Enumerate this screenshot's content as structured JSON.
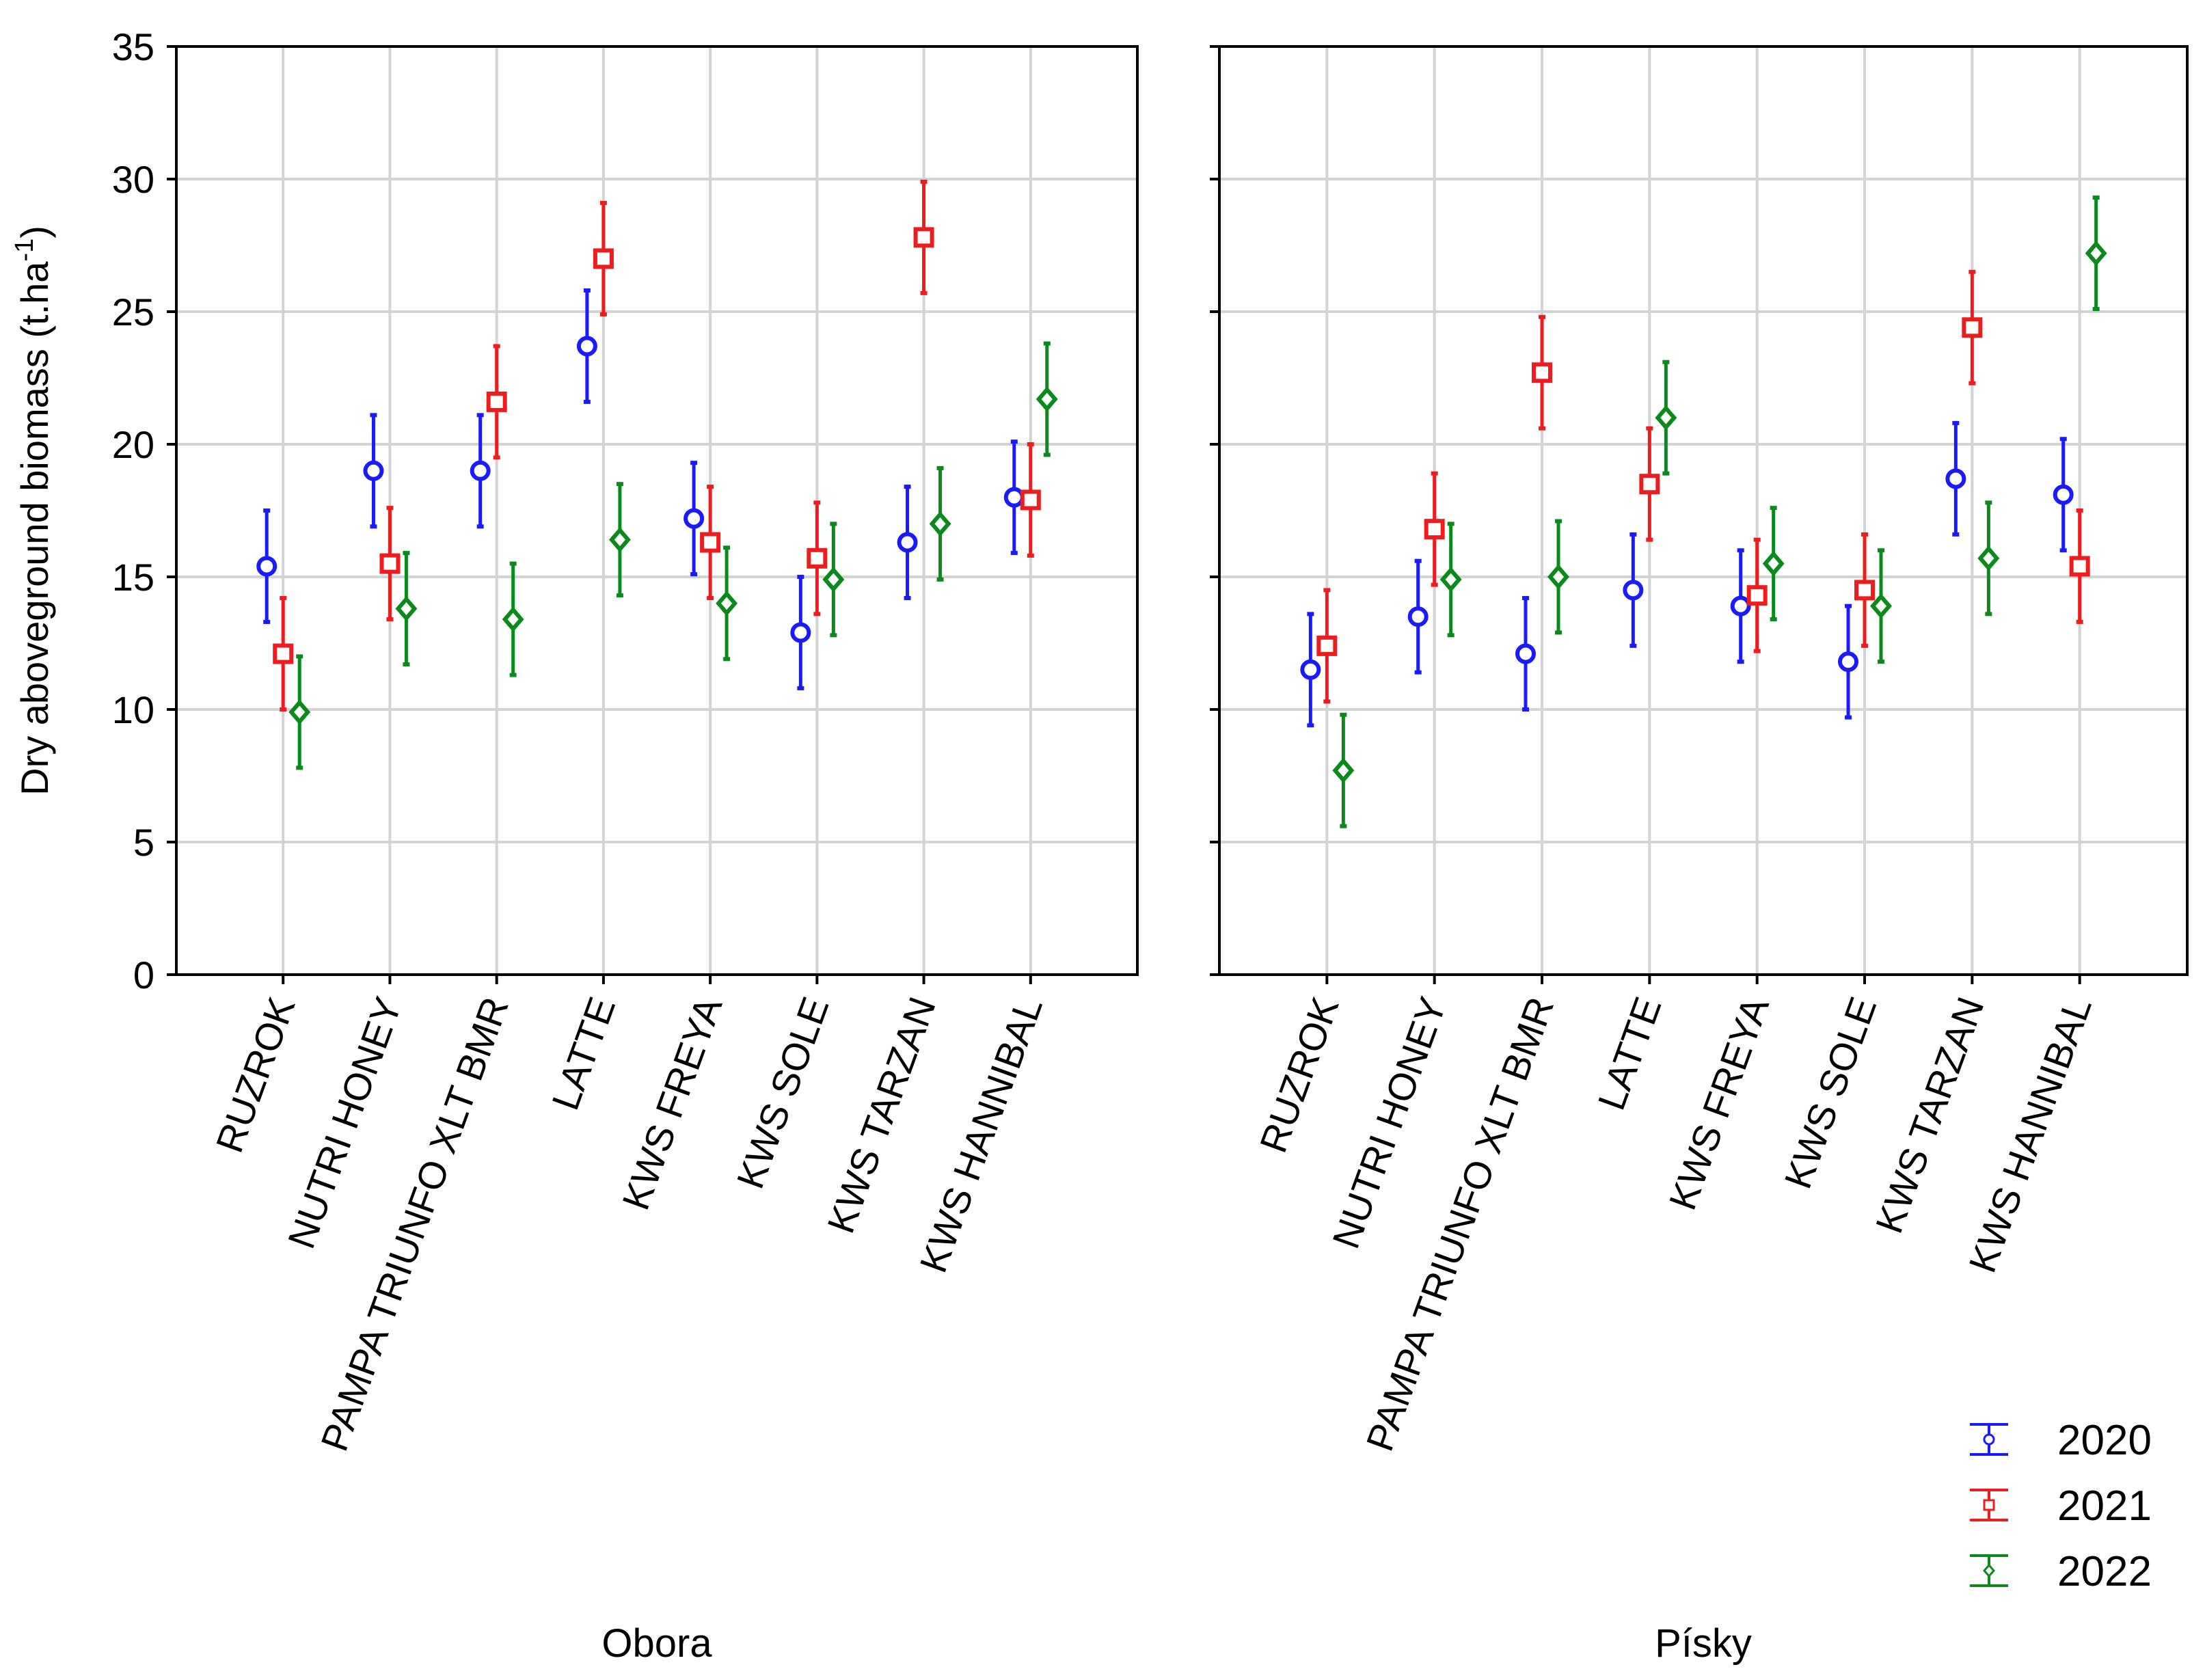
{
  "chart_data": {
    "type": "errorbar",
    "ylabel_main": "Dry aboveground biomass (t.ha",
    "ylabel_exponent": "-1",
    "ylabel_suffix": ")",
    "ylim": [
      0,
      35
    ],
    "yticks": [
      "0",
      "5",
      "10",
      "15",
      "20",
      "25",
      "30",
      "35"
    ],
    "grid": true,
    "legend_position": "bottom-right",
    "categories": [
      "RUZROK",
      "NUTRI HONEY",
      "PAMPA TRIUNFO XLT BMR",
      "LATTE",
      "KWS FREYA",
      "KWS SOLE",
      "KWS TARZAN",
      "KWS HANNIBAL"
    ],
    "series": [
      {
        "name": "2020",
        "color": "#1a1aff",
        "marker": "circle"
      },
      {
        "name": "2021",
        "color": "#ee1c1c",
        "marker": "square"
      },
      {
        "name": "2022",
        "color": "#0a8a1a",
        "marker": "diamond"
      }
    ],
    "panels": [
      {
        "title": "Obora",
        "values": {
          "2020": [
            15.4,
            19.0,
            19.0,
            23.7,
            17.2,
            12.9,
            16.3,
            18.0
          ],
          "2021": [
            12.1,
            15.5,
            21.6,
            27.0,
            16.3,
            15.7,
            27.8,
            17.9
          ],
          "2022": [
            9.9,
            13.8,
            13.4,
            16.4,
            14.0,
            14.9,
            17.0,
            21.7
          ]
        },
        "lower": {
          "2020": [
            13.3,
            16.9,
            16.9,
            21.6,
            15.1,
            10.8,
            14.2,
            15.9
          ],
          "2021": [
            10.0,
            13.4,
            19.5,
            24.9,
            14.2,
            13.6,
            25.7,
            15.8
          ],
          "2022": [
            7.8,
            11.7,
            11.3,
            14.3,
            11.9,
            12.8,
            14.9,
            19.6
          ]
        },
        "upper": {
          "2020": [
            17.5,
            21.1,
            21.1,
            25.8,
            19.3,
            15.0,
            18.4,
            20.1
          ],
          "2021": [
            14.2,
            17.6,
            23.7,
            29.1,
            18.4,
            17.8,
            29.9,
            20.0
          ],
          "2022": [
            12.0,
            15.9,
            15.5,
            18.5,
            16.1,
            17.0,
            19.1,
            23.8
          ]
        }
      },
      {
        "title": "Písky",
        "values": {
          "2020": [
            11.5,
            13.5,
            12.1,
            14.5,
            13.9,
            11.8,
            18.7,
            18.1
          ],
          "2021": [
            12.4,
            16.8,
            22.7,
            18.5,
            14.3,
            14.5,
            24.4,
            15.4
          ],
          "2022": [
            7.7,
            14.9,
            15.0,
            21.0,
            15.5,
            13.9,
            15.7,
            27.2
          ]
        },
        "lower": {
          "2020": [
            9.4,
            11.4,
            10.0,
            12.4,
            11.8,
            9.7,
            16.6,
            16.0
          ],
          "2021": [
            10.3,
            14.7,
            20.6,
            16.4,
            12.2,
            12.4,
            22.3,
            13.3
          ],
          "2022": [
            5.6,
            12.8,
            12.9,
            18.9,
            13.4,
            11.8,
            13.6,
            25.1
          ]
        },
        "upper": {
          "2020": [
            13.6,
            15.6,
            14.2,
            16.6,
            16.0,
            13.9,
            20.8,
            20.2
          ],
          "2021": [
            14.5,
            18.9,
            24.8,
            20.6,
            16.4,
            16.6,
            26.5,
            17.5
          ],
          "2022": [
            9.8,
            17.0,
            17.1,
            23.1,
            17.6,
            16.0,
            17.8,
            29.3
          ]
        }
      }
    ]
  }
}
